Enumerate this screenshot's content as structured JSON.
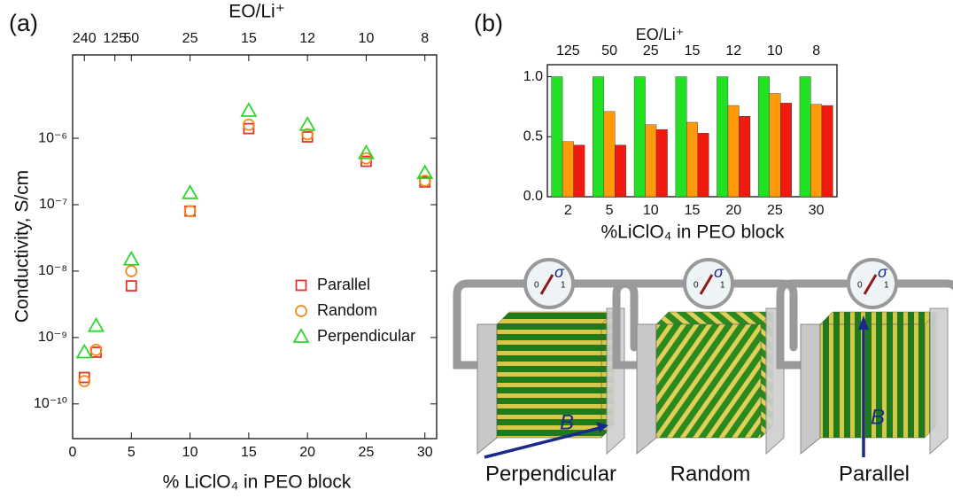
{
  "panels": [
    "(a)",
    "(b)"
  ],
  "chart_data": [
    {
      "type": "scatter",
      "top_axis_title": "EO/Li⁺",
      "ylabel": "Conductivity, S/cm",
      "xlabel": "% LiClO₄ in PEO block",
      "x": [
        1,
        2,
        5,
        10,
        15,
        20,
        25,
        30
      ],
      "series": [
        {
          "name": "Parallel",
          "color": "#e8302a",
          "marker": "square",
          "values": [
            2.5e-10,
            6e-10,
            6e-09,
            8e-08,
            1.4e-06,
            1.05e-06,
            4.5e-07,
            2.2e-07
          ]
        },
        {
          "name": "Random",
          "color": "#f28c1c",
          "marker": "circle",
          "values": [
            2.2e-10,
            6.5e-10,
            1e-08,
            8e-08,
            1.6e-06,
            1.15e-06,
            5e-07,
            2.3e-07
          ]
        },
        {
          "name": "Perpendicular",
          "color": "#2fd62f",
          "marker": "triangle",
          "values": [
            6e-10,
            1.5e-09,
            1.5e-08,
            1.5e-07,
            2.6e-06,
            1.6e-06,
            6e-07,
            3e-07
          ]
        }
      ],
      "xlim": [
        0,
        31
      ],
      "xticks": [
        0,
        5,
        10,
        15,
        20,
        25,
        30
      ],
      "ylim": [
        3e-11,
        1.8e-05
      ],
      "log_y": true,
      "yticks": [
        {
          "value": 1e-10,
          "label": "10⁻¹⁰"
        },
        {
          "value": 1e-09,
          "label": "10⁻⁹"
        },
        {
          "value": 1e-08,
          "label": "10⁻⁸"
        },
        {
          "value": 1e-07,
          "label": "10⁻⁷"
        },
        {
          "value": 1e-06,
          "label": "10⁻⁶"
        }
      ],
      "x2ticks": [
        {
          "value": 1,
          "label": "240"
        },
        {
          "value": 3.6,
          "label": "125"
        },
        {
          "value": 5,
          "label": "50"
        },
        {
          "value": 10,
          "label": "25"
        },
        {
          "value": 15,
          "label": "15"
        },
        {
          "value": 20,
          "label": "12"
        },
        {
          "value": 25,
          "label": "10"
        },
        {
          "value": 30,
          "label": "8"
        }
      ],
      "legend": "center right",
      "grid": false
    },
    {
      "type": "bar",
      "top_axis_title": "EO/Li⁺",
      "xlabel": "%LiClO₄ in PEO block",
      "categories": [
        "2",
        "5",
        "10",
        "15",
        "20",
        "25",
        "30"
      ],
      "top_categories": [
        "125",
        "50",
        "25",
        "15",
        "12",
        "10",
        "8"
      ],
      "series": [
        {
          "color": "#22e022",
          "values": [
            1.0,
            1.0,
            1.0,
            1.0,
            1.0,
            1.0,
            1.0
          ]
        },
        {
          "color": "#ff9a0a",
          "values": [
            0.46,
            0.71,
            0.6,
            0.62,
            0.76,
            0.86,
            0.77
          ]
        },
        {
          "color": "#f01a10",
          "values": [
            0.43,
            0.43,
            0.56,
            0.53,
            0.67,
            0.78,
            0.76
          ]
        }
      ],
      "ylim": [
        0,
        1.1
      ],
      "yticks": [
        {
          "value": 0,
          "label": "0.0"
        },
        {
          "value": 0.5,
          "label": "0.5"
        },
        {
          "value": 1,
          "label": "1.0"
        }
      ],
      "grid": false
    }
  ],
  "diagrams": [
    {
      "label": "Perpendicular",
      "meter": "σ",
      "scale_low": "0",
      "scale_high": "1",
      "field": "B"
    },
    {
      "label": "Random",
      "meter": "σ",
      "scale_low": "0",
      "scale_high": "1"
    },
    {
      "label": "Parallel",
      "meter": "σ",
      "scale_low": "0",
      "scale_high": "1",
      "field": "B"
    }
  ]
}
